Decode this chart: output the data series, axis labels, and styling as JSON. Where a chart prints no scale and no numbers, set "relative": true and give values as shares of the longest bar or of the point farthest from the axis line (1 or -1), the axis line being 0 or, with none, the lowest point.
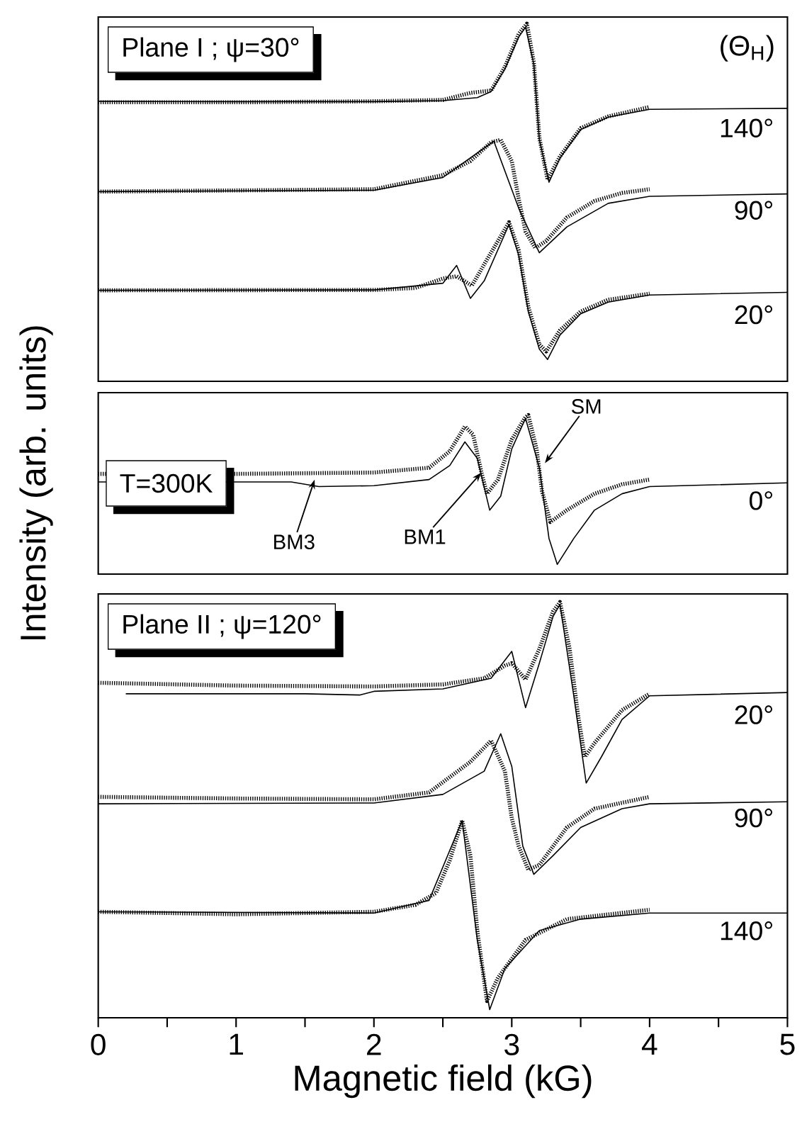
{
  "chart_data": [
    {
      "type": "line",
      "title": "Plane I ; ψ=30°",
      "legend_title": "(Θ$_{H}$)",
      "relative": true,
      "xlim": [
        0,
        5
      ],
      "tick_labels": false,
      "series": [
        {
          "name": "140°",
          "color": "#000000",
          "line_style": "dotted",
          "x": [
            0,
            1,
            2,
            2.5,
            2.7,
            2.85,
            2.95,
            3.05,
            3.11,
            3.16,
            3.2,
            3.26,
            3.35,
            3.5,
            3.7,
            4.0
          ],
          "values": [
            0.766,
            0.766,
            0.769,
            0.773,
            0.794,
            0.801,
            0.871,
            0.969,
            1.0,
            0.885,
            0.661,
            0.535,
            0.605,
            0.689,
            0.724,
            0.752
          ]
        },
        {
          "color": "#000000",
          "line_style": "solid",
          "x": [
            0,
            1,
            2,
            2.5,
            2.75,
            2.85,
            2.95,
            3.05,
            3.1,
            3.16,
            3.2,
            3.27,
            3.35,
            3.5,
            3.7,
            4.0,
            5.0
          ],
          "values": [
            0.769,
            0.768,
            0.768,
            0.771,
            0.78,
            0.798,
            0.865,
            0.96,
            0.99,
            0.88,
            0.655,
            0.528,
            0.6,
            0.685,
            0.722,
            0.745,
            0.748
          ]
        },
        {
          "name": "90°",
          "color": "#000000",
          "line_style": "dotted",
          "x": [
            0,
            2,
            2.5,
            2.7,
            2.85,
            2.92,
            3.0,
            3.05,
            3.1,
            3.17,
            3.25,
            3.4,
            3.6,
            3.8,
            4.0
          ],
          "values": [
            0.5,
            0.507,
            0.549,
            0.591,
            0.647,
            0.654,
            0.591,
            0.479,
            0.381,
            0.332,
            0.353,
            0.423,
            0.472,
            0.496,
            0.507
          ]
        },
        {
          "color": "#000000",
          "line_style": "solid",
          "x": [
            0,
            2,
            2.5,
            2.87,
            3.05,
            3.2,
            3.4,
            3.7,
            4.0,
            5.0
          ],
          "values": [
            0.5,
            0.504,
            0.542,
            0.65,
            0.451,
            0.318,
            0.395,
            0.465,
            0.486,
            0.493
          ]
        },
        {
          "name": "20°",
          "color": "#000000",
          "line_style": "dotted",
          "x": [
            0,
            2,
            2.3,
            2.5,
            2.6,
            2.71,
            2.98,
            3.05,
            3.12,
            3.2,
            3.25,
            3.35,
            3.5,
            3.7,
            4.0
          ],
          "values": [
            0.206,
            0.207,
            0.213,
            0.241,
            0.248,
            0.22,
            0.409,
            0.325,
            0.157,
            0.045,
            0.024,
            0.087,
            0.143,
            0.178,
            0.196
          ]
        },
        {
          "color": "#000000",
          "line_style": "solid",
          "x": [
            0,
            2,
            2.5,
            2.6,
            2.7,
            2.8,
            2.98,
            3.05,
            3.12,
            3.2,
            3.26,
            3.35,
            3.5,
            3.7,
            4.0,
            5.0
          ],
          "values": [
            0.206,
            0.207,
            0.227,
            0.28,
            0.182,
            0.234,
            0.402,
            0.311,
            0.143,
            0.031,
            0.0,
            0.073,
            0.136,
            0.171,
            0.192,
            0.2
          ]
        }
      ]
    },
    {
      "type": "line",
      "title": "T=300K",
      "ylabel": "Intensity (arb. units)",
      "relative": true,
      "xlim": [
        0,
        5
      ],
      "tick_labels": false,
      "annotations": [
        {
          "text": "BM3",
          "x": 1.57,
          "y": 0.568
        },
        {
          "text": "BM1",
          "x": 2.78,
          "y": 0.615
        },
        {
          "text": "SM",
          "x": 3.24,
          "y": 0.678
        }
      ],
      "series": [
        {
          "name": "0°",
          "color": "#000000",
          "line_style": "dotted",
          "x": [
            0,
            1,
            2,
            2.4,
            2.55,
            2.66,
            2.72,
            2.78,
            2.82,
            2.9,
            3.0,
            3.1,
            3.12,
            3.18,
            3.22,
            3.28,
            3.4,
            3.6,
            3.8,
            4.0
          ],
          "values": [
            0.606,
            0.606,
            0.615,
            0.647,
            0.757,
            0.924,
            0.868,
            0.615,
            0.473,
            0.568,
            0.836,
            0.987,
            1.0,
            0.773,
            0.489,
            0.284,
            0.363,
            0.473,
            0.536,
            0.568
          ]
        },
        {
          "color": "#000000",
          "line_style": "solid",
          "x": [
            0,
            1.4,
            1.6,
            2.0,
            2.4,
            2.55,
            2.66,
            2.75,
            2.84,
            2.92,
            3.0,
            3.1,
            3.2,
            3.27,
            3.33,
            3.45,
            3.6,
            3.8,
            4.0,
            5.0
          ],
          "values": [
            0.552,
            0.552,
            0.521,
            0.527,
            0.568,
            0.662,
            0.82,
            0.71,
            0.363,
            0.457,
            0.773,
            0.978,
            0.647,
            0.174,
            0.0,
            0.174,
            0.363,
            0.473,
            0.521,
            0.546
          ]
        }
      ]
    },
    {
      "type": "line",
      "title": "Plane II ; ψ=120°",
      "xlabel": "Magnetic field (kG)",
      "relative": true,
      "xlim": [
        0,
        5
      ],
      "tick_labels": "x",
      "xticks": [
        0,
        {
          "value": 0.5,
          "label": null
        },
        1,
        {
          "value": 1.5,
          "label": null
        },
        2,
        {
          "value": 2.5,
          "label": null
        },
        3,
        {
          "value": 3.5,
          "label": null
        },
        4,
        {
          "value": 4.5,
          "label": null
        },
        5
      ],
      "series": [
        {
          "name": "20°",
          "color": "#000000",
          "line_style": "dotted",
          "x": [
            0,
            1,
            2,
            2.5,
            2.8,
            2.95,
            3.0,
            3.1,
            3.2,
            3.3,
            3.35,
            3.42,
            3.48,
            3.53,
            3.6,
            3.8,
            4.0
          ],
          "values": [
            0.802,
            0.795,
            0.793,
            0.798,
            0.813,
            0.844,
            0.85,
            0.81,
            0.885,
            0.977,
            1.0,
            0.885,
            0.724,
            0.62,
            0.654,
            0.735,
            0.775
          ]
        },
        {
          "color": "#000000",
          "line_style": "solid",
          "x": [
            0.2,
            1.5,
            1.9,
            2.0,
            2.5,
            2.85,
            3.0,
            3.1,
            3.2,
            3.3,
            3.35,
            3.45,
            3.54,
            3.65,
            3.8,
            4.0,
            5.0
          ],
          "values": [
            0.775,
            0.775,
            0.772,
            0.781,
            0.787,
            0.813,
            0.879,
            0.741,
            0.85,
            0.965,
            0.994,
            0.77,
            0.556,
            0.62,
            0.712,
            0.77,
            0.778
          ]
        },
        {
          "name": "90°",
          "color": "#000000",
          "line_style": "dotted",
          "x": [
            0,
            1,
            2,
            2.4,
            2.7,
            2.85,
            2.95,
            3.0,
            3.05,
            3.12,
            3.2,
            3.4,
            3.6,
            4.0
          ],
          "values": [
            0.522,
            0.518,
            0.516,
            0.533,
            0.608,
            0.66,
            0.585,
            0.47,
            0.401,
            0.343,
            0.355,
            0.447,
            0.493,
            0.522
          ]
        },
        {
          "color": "#000000",
          "line_style": "solid",
          "x": [
            0,
            2,
            2.5,
            2.8,
            2.92,
            3.0,
            3.08,
            3.16,
            3.3,
            3.5,
            3.8,
            4.0,
            5.0
          ],
          "values": [
            0.505,
            0.507,
            0.528,
            0.585,
            0.677,
            0.597,
            0.401,
            0.332,
            0.378,
            0.447,
            0.493,
            0.505,
            0.51
          ]
        },
        {
          "name": "140°",
          "color": "#000000",
          "line_style": "dotted",
          "x": [
            0,
            1,
            2,
            2.3,
            2.45,
            2.55,
            2.64,
            2.7,
            2.75,
            2.82,
            2.9,
            3.1,
            3.4,
            4.0
          ],
          "values": [
            0.24,
            0.234,
            0.24,
            0.257,
            0.286,
            0.366,
            0.464,
            0.378,
            0.194,
            0.021,
            0.078,
            0.171,
            0.222,
            0.245
          ]
        },
        {
          "color": "#000000",
          "line_style": "solid",
          "x": [
            0,
            2,
            2.4,
            2.64,
            2.75,
            2.84,
            2.95,
            3.2,
            3.5,
            4.0,
            5.0
          ],
          "values": [
            0.24,
            0.237,
            0.268,
            0.464,
            0.171,
            0.0,
            0.101,
            0.194,
            0.222,
            0.237,
            0.237
          ]
        }
      ]
    }
  ]
}
